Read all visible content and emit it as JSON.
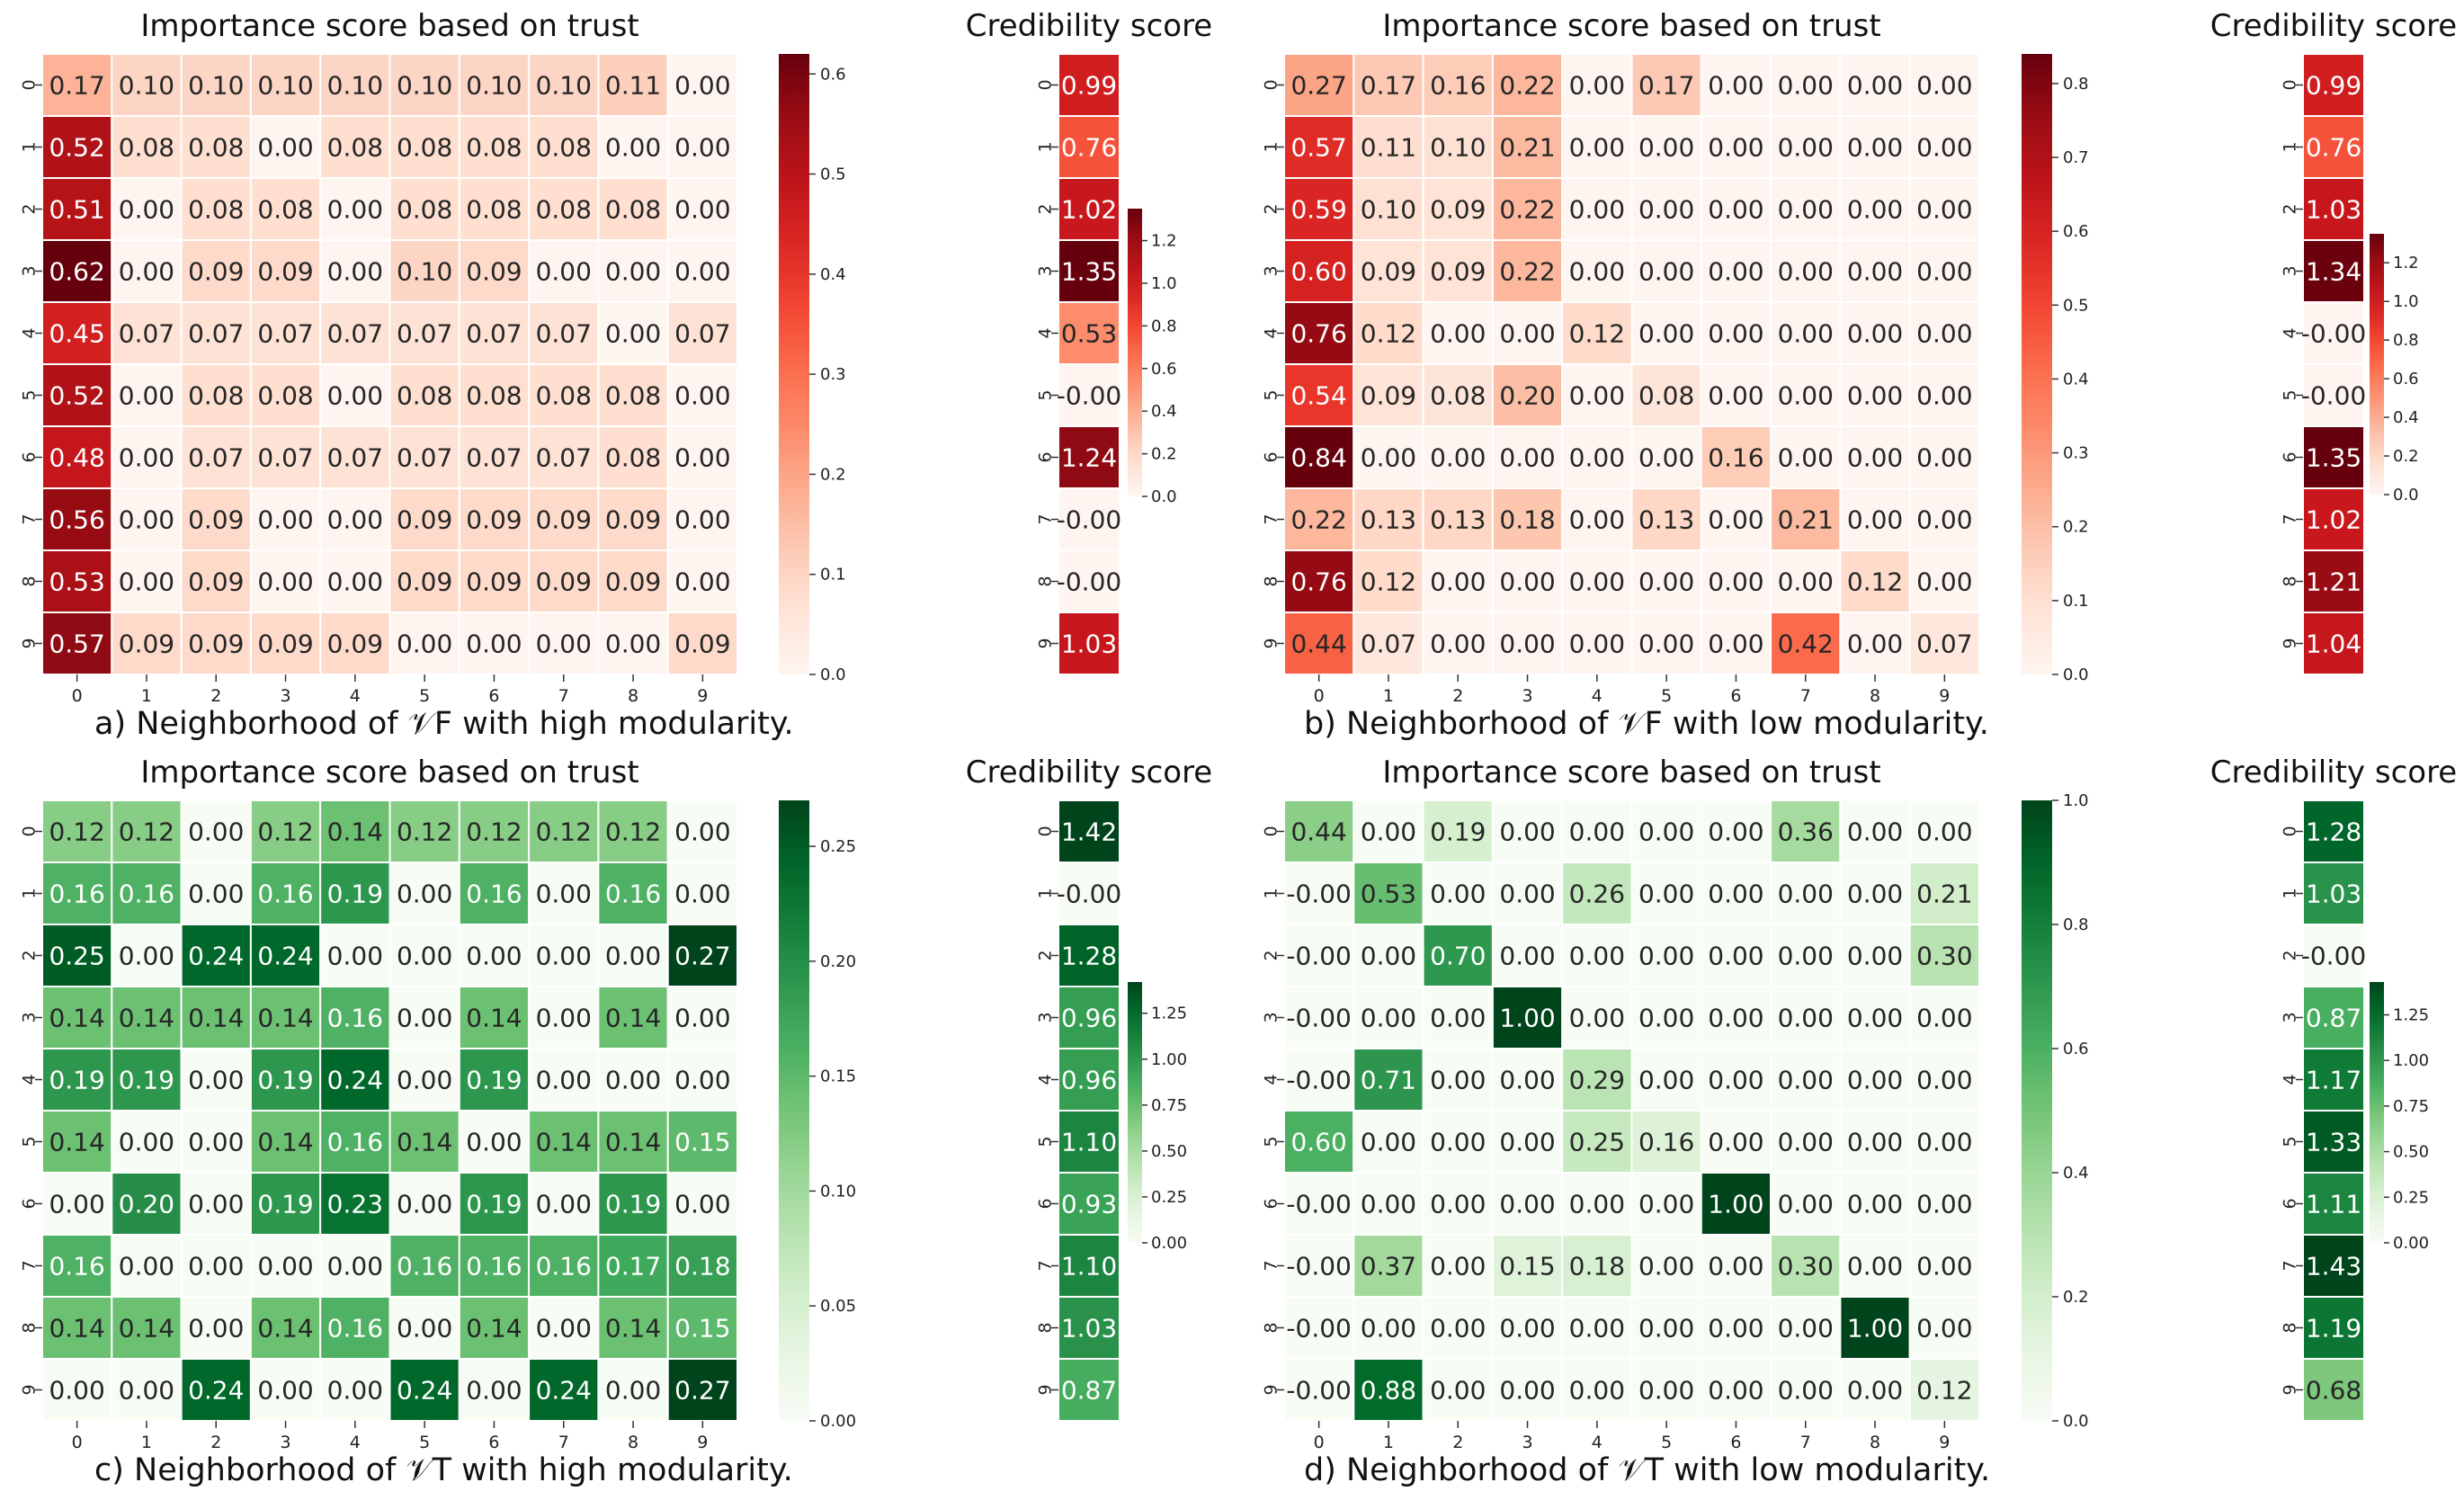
{
  "chart_data": [
    {
      "type": "heatmap",
      "id": "a",
      "cmap": "reds",
      "title": "Importance score based on trust",
      "caption": "a) Neighborhood of 𝒱F with high modularity.",
      "xticks": [
        "0",
        "1",
        "2",
        "3",
        "4",
        "5",
        "6",
        "7",
        "8",
        "9"
      ],
      "yticks": [
        "0",
        "1",
        "2",
        "3",
        "4",
        "5",
        "6",
        "7",
        "8",
        "9"
      ],
      "values": [
        [
          0.17,
          0.1,
          0.1,
          0.1,
          0.1,
          0.1,
          0.1,
          0.1,
          0.11,
          0.0
        ],
        [
          0.52,
          0.08,
          0.08,
          0.0,
          0.08,
          0.08,
          0.08,
          0.08,
          0.0,
          0.0
        ],
        [
          0.51,
          0.0,
          0.08,
          0.08,
          0.0,
          0.08,
          0.08,
          0.08,
          0.08,
          0.0
        ],
        [
          0.62,
          0.0,
          0.09,
          0.09,
          0.0,
          0.1,
          0.09,
          0.0,
          0.0,
          0.0
        ],
        [
          0.45,
          0.07,
          0.07,
          0.07,
          0.07,
          0.07,
          0.07,
          0.07,
          0.0,
          0.07
        ],
        [
          0.52,
          0.0,
          0.08,
          0.08,
          0.0,
          0.08,
          0.08,
          0.08,
          0.08,
          0.0
        ],
        [
          0.48,
          0.0,
          0.07,
          0.07,
          0.07,
          0.07,
          0.07,
          0.07,
          0.08,
          0.0
        ],
        [
          0.56,
          0.0,
          0.09,
          0.0,
          0.0,
          0.09,
          0.09,
          0.09,
          0.09,
          0.0
        ],
        [
          0.53,
          0.0,
          0.09,
          0.0,
          0.0,
          0.09,
          0.09,
          0.09,
          0.09,
          0.0
        ],
        [
          0.57,
          0.09,
          0.09,
          0.09,
          0.09,
          0.0,
          0.0,
          0.0,
          0.0,
          0.09
        ]
      ],
      "colorbar": {
        "min": 0,
        "max": 0.62,
        "ticks": [
          "0.0",
          "0.1",
          "0.2",
          "0.3",
          "0.4",
          "0.5",
          "0.6"
        ]
      },
      "credibility": {
        "title": "Credibility score",
        "values": [
          0.99,
          0.76,
          1.02,
          1.35,
          0.53,
          0.0,
          1.24,
          0.0,
          0.0,
          1.03
        ],
        "labels": [
          "0.99",
          "0.76",
          "1.02",
          "1.35",
          "0.53",
          "-0.00",
          "1.24",
          "-0.00",
          "-0.00",
          "1.03"
        ],
        "colorbar": {
          "min": 0,
          "max": 1.35,
          "ticks": [
            "0.0",
            "0.2",
            "0.4",
            "0.6",
            "0.8",
            "1.0",
            "1.2"
          ]
        }
      }
    },
    {
      "type": "heatmap",
      "id": "b",
      "cmap": "reds",
      "title": "Importance score based on trust",
      "caption": "b) Neighborhood of 𝒱F with low modularity.",
      "xticks": [
        "0",
        "1",
        "2",
        "3",
        "4",
        "5",
        "6",
        "7",
        "8",
        "9"
      ],
      "yticks": [
        "0",
        "1",
        "2",
        "3",
        "4",
        "5",
        "6",
        "7",
        "8",
        "9"
      ],
      "values": [
        [
          0.27,
          0.17,
          0.16,
          0.22,
          0.0,
          0.17,
          0.0,
          0.0,
          0.0,
          0.0
        ],
        [
          0.57,
          0.11,
          0.1,
          0.21,
          0.0,
          0.0,
          0.0,
          0.0,
          0.0,
          0.0
        ],
        [
          0.59,
          0.1,
          0.09,
          0.22,
          0.0,
          0.0,
          0.0,
          0.0,
          0.0,
          0.0
        ],
        [
          0.6,
          0.09,
          0.09,
          0.22,
          0.0,
          0.0,
          0.0,
          0.0,
          0.0,
          0.0
        ],
        [
          0.76,
          0.12,
          0.0,
          0.0,
          0.12,
          0.0,
          0.0,
          0.0,
          0.0,
          0.0
        ],
        [
          0.54,
          0.09,
          0.08,
          0.2,
          0.0,
          0.08,
          0.0,
          0.0,
          0.0,
          0.0
        ],
        [
          0.84,
          0.0,
          0.0,
          0.0,
          0.0,
          0.0,
          0.16,
          0.0,
          0.0,
          0.0
        ],
        [
          0.22,
          0.13,
          0.13,
          0.18,
          0.0,
          0.13,
          0.0,
          0.21,
          0.0,
          0.0
        ],
        [
          0.76,
          0.12,
          0.0,
          0.0,
          0.0,
          0.0,
          0.0,
          0.0,
          0.12,
          0.0
        ],
        [
          0.44,
          0.07,
          0.0,
          0.0,
          0.0,
          0.0,
          0.0,
          0.42,
          0.0,
          0.07
        ]
      ],
      "colorbar": {
        "min": 0,
        "max": 0.84,
        "ticks": [
          "0.0",
          "0.1",
          "0.2",
          "0.3",
          "0.4",
          "0.5",
          "0.6",
          "0.7",
          "0.8"
        ]
      },
      "credibility": {
        "title": "Credibility score",
        "values": [
          0.99,
          0.76,
          1.03,
          1.34,
          0.0,
          0.0,
          1.35,
          1.02,
          1.21,
          1.04
        ],
        "labels": [
          "0.99",
          "0.76",
          "1.03",
          "1.34",
          "-0.00",
          "-0.00",
          "1.35",
          "1.02",
          "1.21",
          "1.04"
        ],
        "colorbar": {
          "min": 0,
          "max": 1.35,
          "ticks": [
            "0.0",
            "0.2",
            "0.4",
            "0.6",
            "0.8",
            "1.0",
            "1.2"
          ]
        }
      }
    },
    {
      "type": "heatmap",
      "id": "c",
      "cmap": "greens",
      "title": "Importance score based on trust",
      "caption": "c) Neighborhood of 𝒱T with high modularity.",
      "xticks": [
        "0",
        "1",
        "2",
        "3",
        "4",
        "5",
        "6",
        "7",
        "8",
        "9"
      ],
      "yticks": [
        "0",
        "1",
        "2",
        "3",
        "4",
        "5",
        "6",
        "7",
        "8",
        "9"
      ],
      "values": [
        [
          0.12,
          0.12,
          0.0,
          0.12,
          0.14,
          0.12,
          0.12,
          0.12,
          0.12,
          0.0
        ],
        [
          0.16,
          0.16,
          0.0,
          0.16,
          0.19,
          0.0,
          0.16,
          0.0,
          0.16,
          0.0
        ],
        [
          0.25,
          0.0,
          0.24,
          0.24,
          0.0,
          0.0,
          0.0,
          0.0,
          0.0,
          0.27
        ],
        [
          0.14,
          0.14,
          0.14,
          0.14,
          0.16,
          0.0,
          0.14,
          0.0,
          0.14,
          0.0
        ],
        [
          0.19,
          0.19,
          0.0,
          0.19,
          0.24,
          0.0,
          0.19,
          0.0,
          0.0,
          0.0
        ],
        [
          0.14,
          0.0,
          0.0,
          0.14,
          0.16,
          0.14,
          0.0,
          0.14,
          0.14,
          0.15
        ],
        [
          0.0,
          0.2,
          0.0,
          0.19,
          0.23,
          0.0,
          0.19,
          0.0,
          0.19,
          0.0
        ],
        [
          0.16,
          0.0,
          0.0,
          0.0,
          0.0,
          0.16,
          0.16,
          0.16,
          0.17,
          0.18
        ],
        [
          0.14,
          0.14,
          0.0,
          0.14,
          0.16,
          0.0,
          0.14,
          0.0,
          0.14,
          0.15
        ],
        [
          0.0,
          0.0,
          0.24,
          0.0,
          0.0,
          0.24,
          0.0,
          0.24,
          0.0,
          0.27
        ]
      ],
      "colorbar": {
        "min": 0,
        "max": 0.27,
        "ticks": [
          "0.00",
          "0.05",
          "0.10",
          "0.15",
          "0.20",
          "0.25"
        ]
      },
      "credibility": {
        "title": "Credibility score",
        "values": [
          1.42,
          0.0,
          1.28,
          0.96,
          0.96,
          1.1,
          0.93,
          1.1,
          1.03,
          0.87
        ],
        "labels": [
          "1.42",
          "-0.00",
          "1.28",
          "0.96",
          "0.96",
          "1.10",
          "0.93",
          "1.10",
          "1.03",
          "0.87"
        ],
        "colorbar": {
          "min": 0,
          "max": 1.42,
          "ticks": [
            "0.00",
            "0.25",
            "0.50",
            "0.75",
            "1.00",
            "1.25"
          ]
        }
      }
    },
    {
      "type": "heatmap",
      "id": "d",
      "cmap": "greens",
      "title": "Importance score based on trust",
      "caption": "d) Neighborhood of 𝒱T with low modularity.",
      "xticks": [
        "0",
        "1",
        "2",
        "3",
        "4",
        "5",
        "6",
        "7",
        "8",
        "9"
      ],
      "yticks": [
        "0",
        "1",
        "2",
        "3",
        "4",
        "5",
        "6",
        "7",
        "8",
        "9"
      ],
      "values": [
        [
          0.44,
          0.0,
          0.19,
          0.0,
          0.0,
          0.0,
          0.0,
          0.36,
          0.0,
          0.0
        ],
        [
          0.0,
          0.53,
          0.0,
          0.0,
          0.26,
          0.0,
          0.0,
          0.0,
          0.0,
          0.21
        ],
        [
          0.0,
          0.0,
          0.7,
          0.0,
          0.0,
          0.0,
          0.0,
          0.0,
          0.0,
          0.3
        ],
        [
          0.0,
          0.0,
          0.0,
          1.0,
          0.0,
          0.0,
          0.0,
          0.0,
          0.0,
          0.0
        ],
        [
          0.0,
          0.71,
          0.0,
          0.0,
          0.29,
          0.0,
          0.0,
          0.0,
          0.0,
          0.0
        ],
        [
          0.6,
          0.0,
          0.0,
          0.0,
          0.25,
          0.16,
          0.0,
          0.0,
          0.0,
          0.0
        ],
        [
          0.0,
          0.0,
          0.0,
          0.0,
          0.0,
          0.0,
          1.0,
          0.0,
          0.0,
          0.0
        ],
        [
          0.0,
          0.37,
          0.0,
          0.15,
          0.18,
          0.0,
          0.0,
          0.3,
          0.0,
          0.0
        ],
        [
          0.0,
          0.0,
          0.0,
          0.0,
          0.0,
          0.0,
          0.0,
          0.0,
          1.0,
          0.0
        ],
        [
          0.0,
          0.88,
          0.0,
          0.0,
          0.0,
          0.0,
          0.0,
          0.0,
          0.0,
          0.12
        ]
      ],
      "labels": [
        [
          "0.44",
          "0.00",
          "0.19",
          "0.00",
          "0.00",
          "0.00",
          "0.00",
          "0.36",
          "0.00",
          "0.00"
        ],
        [
          "-0.00",
          "0.53",
          "0.00",
          "0.00",
          "0.26",
          "0.00",
          "0.00",
          "0.00",
          "0.00",
          "0.21"
        ],
        [
          "-0.00",
          "0.00",
          "0.70",
          "0.00",
          "0.00",
          "0.00",
          "0.00",
          "0.00",
          "0.00",
          "0.30"
        ],
        [
          "-0.00",
          "0.00",
          "0.00",
          "1.00",
          "0.00",
          "0.00",
          "0.00",
          "0.00",
          "0.00",
          "0.00"
        ],
        [
          "-0.00",
          "0.71",
          "0.00",
          "0.00",
          "0.29",
          "0.00",
          "0.00",
          "0.00",
          "0.00",
          "0.00"
        ],
        [
          "0.60",
          "0.00",
          "0.00",
          "0.00",
          "0.25",
          "0.16",
          "0.00",
          "0.00",
          "0.00",
          "0.00"
        ],
        [
          "-0.00",
          "0.00",
          "0.00",
          "0.00",
          "0.00",
          "0.00",
          "1.00",
          "0.00",
          "0.00",
          "0.00"
        ],
        [
          "-0.00",
          "0.37",
          "0.00",
          "0.15",
          "0.18",
          "0.00",
          "0.00",
          "0.30",
          "0.00",
          "0.00"
        ],
        [
          "-0.00",
          "0.00",
          "0.00",
          "0.00",
          "0.00",
          "0.00",
          "0.00",
          "0.00",
          "1.00",
          "0.00"
        ],
        [
          "-0.00",
          "0.88",
          "0.00",
          "0.00",
          "0.00",
          "0.00",
          "0.00",
          "0.00",
          "0.00",
          "0.12"
        ]
      ],
      "colorbar": {
        "min": 0,
        "max": 1.0,
        "ticks": [
          "0.0",
          "0.2",
          "0.4",
          "0.6",
          "0.8",
          "1.0"
        ]
      },
      "credibility": {
        "title": "Credibility score",
        "values": [
          1.28,
          1.03,
          0.0,
          0.87,
          1.17,
          1.33,
          1.11,
          1.43,
          1.19,
          0.68
        ],
        "labels": [
          "1.28",
          "1.03",
          "-0.00",
          "0.87",
          "1.17",
          "1.33",
          "1.11",
          "1.43",
          "1.19",
          "0.68"
        ],
        "colorbar": {
          "min": 0,
          "max": 1.43,
          "ticks": [
            "0.00",
            "0.25",
            "0.50",
            "0.75",
            "1.00",
            "1.25"
          ]
        }
      }
    }
  ]
}
